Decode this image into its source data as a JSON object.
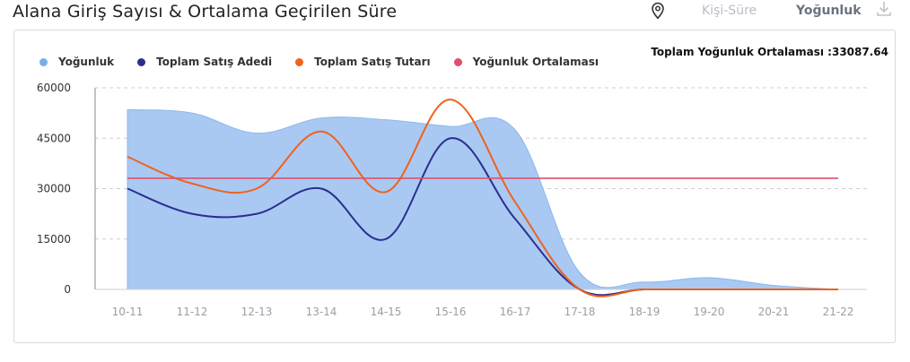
{
  "header": {
    "title": "Alana Giriş Sayısı & Ortalama Geçirilen Süre",
    "btn_kisi_sure": "Kişi-Süre",
    "btn_yogunluk": "Yoğunluk",
    "pin_icon": "location-pin-icon",
    "download_icon": "download-icon"
  },
  "avg_label": "Toplam Yoğunluk Ortalaması :33087.64",
  "legend": [
    {
      "name": "Yoğunluk",
      "color": "#7aaee8"
    },
    {
      "name": "Toplam Satış Adedi",
      "color": "#2a2f8f"
    },
    {
      "name": "Toplam Satış Tutarı",
      "color": "#f0621d"
    },
    {
      "name": "Yoğunluk Ortalaması",
      "color": "#e0506a"
    }
  ],
  "chart_data": {
    "type": "line",
    "categories": [
      "10-11",
      "11-12",
      "12-13",
      "13-14",
      "14-15",
      "15-16",
      "16-17",
      "17-18",
      "18-19",
      "19-20",
      "20-21",
      "21-22"
    ],
    "y_ticks": [
      0,
      15000,
      30000,
      45000,
      60000
    ],
    "ylim": [
      0,
      60000
    ],
    "grid": true,
    "legend_position": "top-left",
    "series": [
      {
        "name": "Yoğunluk",
        "kind": "area",
        "color": "#a9c9f2",
        "values": [
          53500,
          52500,
          46500,
          51000,
          50500,
          48500,
          47500,
          5000,
          2200,
          3500,
          1200,
          0
        ]
      },
      {
        "name": "Toplam Satış Adedi",
        "kind": "line",
        "color": "#2a2f8f",
        "values": [
          30000,
          22500,
          22500,
          30000,
          15000,
          45000,
          21000,
          0,
          0,
          0,
          0,
          0
        ]
      },
      {
        "name": "Toplam Satış Tutarı",
        "kind": "line",
        "color": "#f0621d",
        "values": [
          39500,
          31500,
          30000,
          47000,
          29000,
          56500,
          26000,
          0,
          0,
          0,
          0,
          0
        ]
      },
      {
        "name": "Yoğunluk Ortalaması",
        "kind": "hline",
        "color": "#e0506a",
        "value": 33087.64
      }
    ]
  }
}
